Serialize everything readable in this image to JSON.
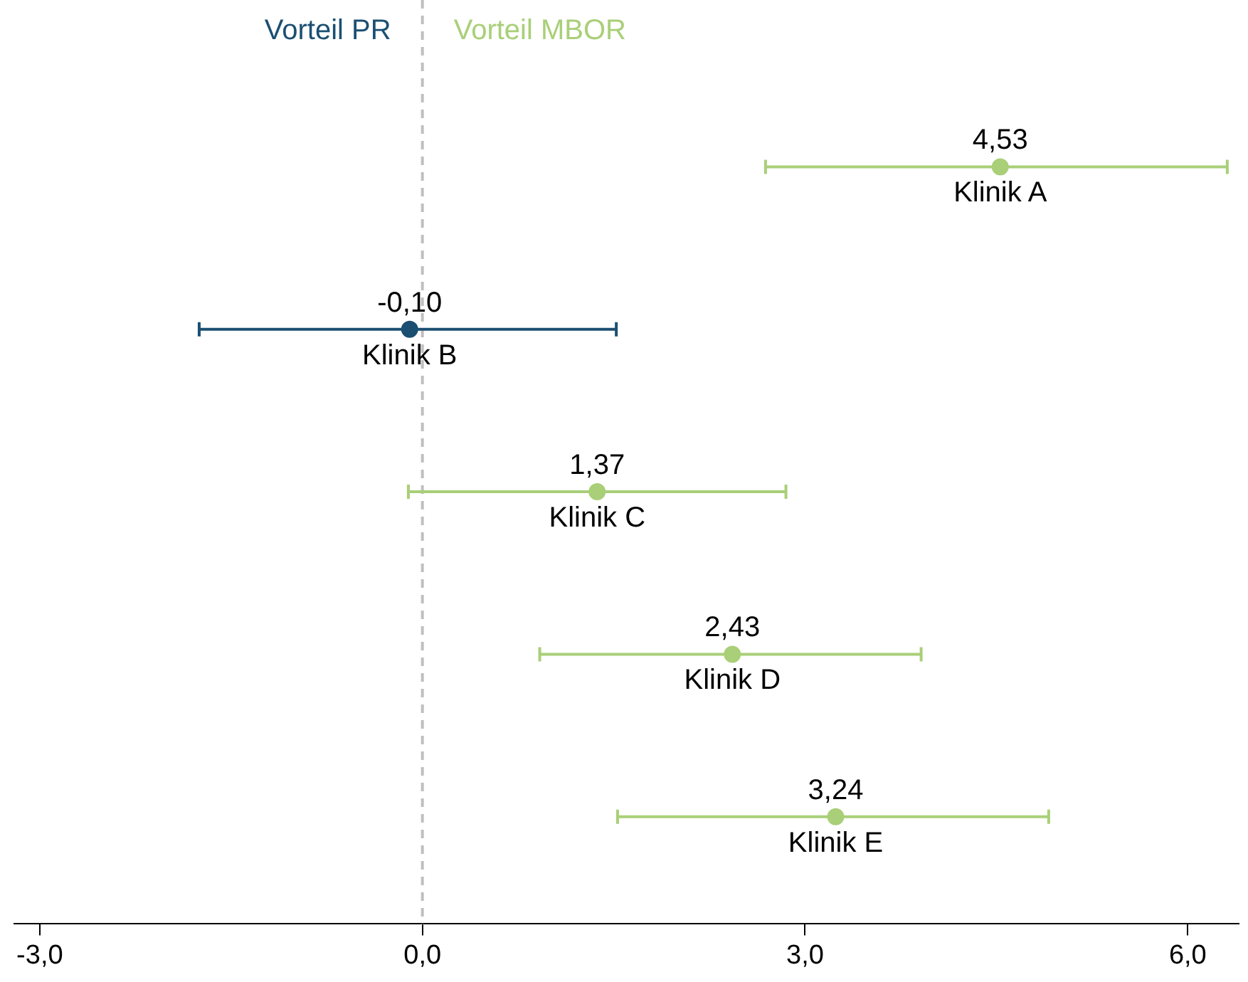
{
  "chart_data": {
    "type": "scatter",
    "orientation": "horizontal",
    "marker": "circle",
    "tick_labels": "x",
    "categories": [
      null,
      null,
      null,
      null,
      null
    ],
    "series": [
      {
        "name": "Klinik A",
        "color": "#a9cf78",
        "values": [
          4.53,
          null,
          null,
          null,
          null
        ],
        "errors": [
          [
            2.69,
            6.31
          ],
          null,
          null,
          null,
          null
        ],
        "value_labels": [
          "4,53",
          null,
          null,
          null,
          null
        ]
      },
      {
        "name": "Klinik B",
        "color": "#1b4f72",
        "values": [
          null,
          -0.1,
          null,
          null,
          null
        ],
        "errors": [
          null,
          [
            -1.75,
            1.52
          ],
          null,
          null,
          null
        ],
        "value_labels": [
          null,
          "-0,10",
          null,
          null,
          null
        ]
      },
      {
        "name": "Klinik C",
        "color": "#a9cf78",
        "values": [
          null,
          null,
          1.37,
          null,
          null
        ],
        "errors": [
          null,
          null,
          [
            -0.11,
            2.85
          ],
          null,
          null
        ],
        "value_labels": [
          null,
          null,
          "1,37",
          null,
          null
        ]
      },
      {
        "name": "Klinik D",
        "color": "#a9cf78",
        "values": [
          null,
          null,
          null,
          2.43,
          null
        ],
        "errors": [
          null,
          null,
          null,
          [
            0.92,
            3.91
          ],
          null
        ],
        "value_labels": [
          null,
          null,
          null,
          "2,43",
          null
        ]
      },
      {
        "name": "Klinik E",
        "color": "#a9cf78",
        "values": [
          null,
          null,
          null,
          null,
          3.24
        ],
        "errors": [
          null,
          null,
          null,
          null,
          [
            1.53,
            4.91
          ]
        ],
        "value_labels": [
          null,
          null,
          null,
          null,
          "3,24"
        ]
      }
    ],
    "xlim": [
      -3.2,
      6.4
    ],
    "xticks": [
      {
        "value": -3,
        "label": "-3,0"
      },
      {
        "value": 0,
        "label": "0,0"
      },
      {
        "value": 3,
        "label": "3,0"
      },
      {
        "value": 6,
        "label": "6,0"
      }
    ],
    "ref_lines": [
      {
        "axis": "x",
        "value": 0,
        "color": "#bfbfbf",
        "line_style": "dashed"
      }
    ],
    "annotations": [
      "Vorteil PR",
      "Vorteil MBOR"
    ]
  }
}
